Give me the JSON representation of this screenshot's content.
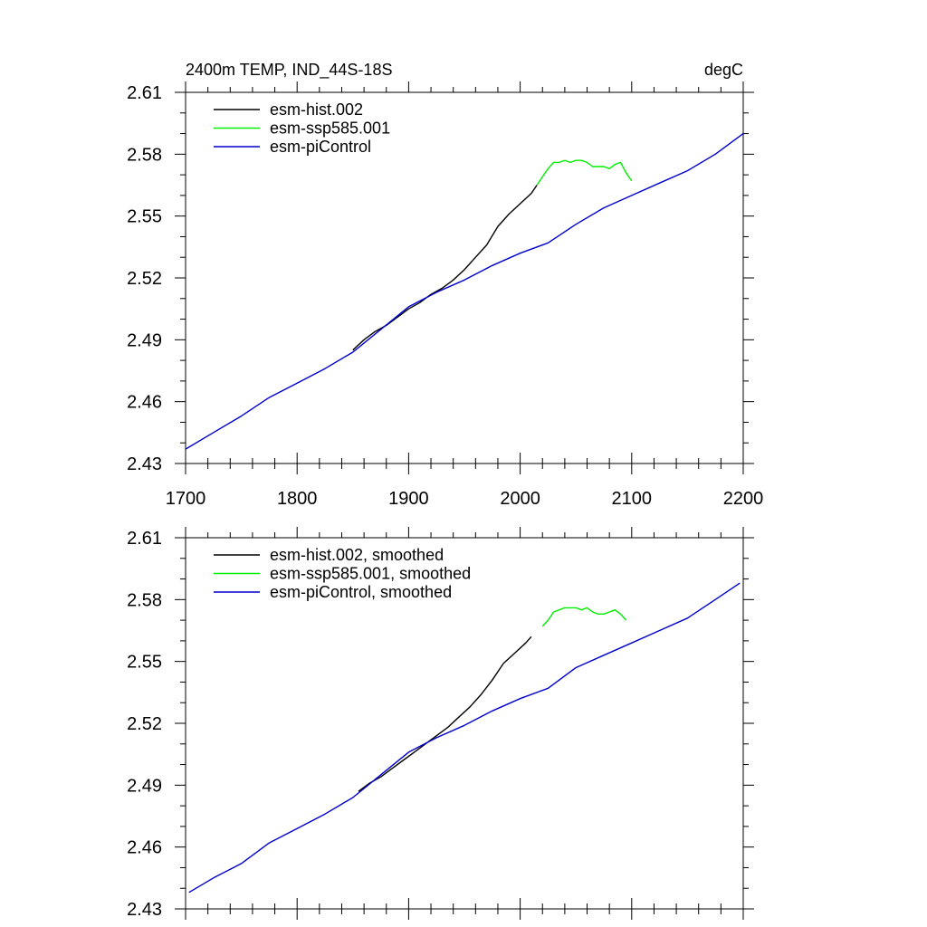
{
  "chart_data": [
    {
      "type": "line",
      "title_left": "2400m TEMP, IND_44S-18S",
      "title_right": "degC",
      "xlabel": "",
      "ylabel": "",
      "xlim": [
        1700,
        2200
      ],
      "ylim": [
        2.43,
        2.61
      ],
      "xticks": [
        "1700",
        "1800",
        "1900",
        "2000",
        "2100",
        "2200"
      ],
      "yticks": [
        "2.43",
        "2.46",
        "2.49",
        "2.52",
        "2.55",
        "2.58",
        "2.61"
      ],
      "legend_position": "top-left",
      "series": [
        {
          "name": "esm-hist.002",
          "color": "#000000",
          "x": [
            1850,
            1860,
            1870,
            1880,
            1890,
            1900,
            1910,
            1920,
            1930,
            1940,
            1950,
            1960,
            1970,
            1980,
            1990,
            2000,
            2010,
            2015
          ],
          "y": [
            2.485,
            2.49,
            2.494,
            2.497,
            2.501,
            2.505,
            2.508,
            2.512,
            2.515,
            2.519,
            2.524,
            2.53,
            2.536,
            2.545,
            2.551,
            2.556,
            2.561,
            2.565
          ]
        },
        {
          "name": "esm-ssp585.001",
          "color": "#00ee00",
          "x": [
            2015,
            2020,
            2025,
            2030,
            2035,
            2040,
            2045,
            2050,
            2055,
            2060,
            2065,
            2070,
            2075,
            2080,
            2085,
            2090,
            2095,
            2100
          ],
          "y": [
            2.565,
            2.569,
            2.573,
            2.576,
            2.576,
            2.577,
            2.576,
            2.577,
            2.577,
            2.576,
            2.574,
            2.574,
            2.574,
            2.573,
            2.575,
            2.576,
            2.571,
            2.567
          ]
        },
        {
          "name": "esm-piControl",
          "color": "#0000cc",
          "x": [
            1700,
            1725,
            1750,
            1775,
            1800,
            1825,
            1850,
            1875,
            1900,
            1925,
            1950,
            1975,
            2000,
            2025,
            2050,
            2075,
            2100,
            2125,
            2150,
            2175,
            2200
          ],
          "y": [
            2.437,
            2.445,
            2.453,
            2.462,
            2.469,
            2.476,
            2.484,
            2.495,
            2.506,
            2.513,
            2.519,
            2.526,
            2.532,
            2.537,
            2.546,
            2.554,
            2.56,
            2.566,
            2.572,
            2.58,
            2.59
          ]
        }
      ]
    },
    {
      "type": "line",
      "title_left": "",
      "title_right": "",
      "xlabel": "",
      "ylabel": "",
      "xlim": [
        1700,
        2200
      ],
      "ylim": [
        2.43,
        2.61
      ],
      "xticks": [],
      "yticks": [
        "2.43",
        "2.46",
        "2.49",
        "2.52",
        "2.55",
        "2.58",
        "2.61"
      ],
      "legend_position": "top-left",
      "series": [
        {
          "name": "esm-hist.002, smoothed",
          "color": "#000000",
          "x": [
            1855,
            1865,
            1875,
            1885,
            1895,
            1905,
            1915,
            1925,
            1935,
            1945,
            1955,
            1965,
            1975,
            1985,
            1995,
            2005,
            2010
          ],
          "y": [
            2.487,
            2.491,
            2.494,
            2.498,
            2.502,
            2.506,
            2.51,
            2.514,
            2.518,
            2.523,
            2.528,
            2.534,
            2.541,
            2.549,
            2.554,
            2.559,
            2.562
          ]
        },
        {
          "name": "esm-ssp585.001, smoothed",
          "color": "#00ee00",
          "x": [
            2020,
            2025,
            2030,
            2035,
            2040,
            2045,
            2050,
            2055,
            2060,
            2065,
            2070,
            2075,
            2080,
            2085,
            2090,
            2095
          ],
          "y": [
            2.567,
            2.57,
            2.574,
            2.575,
            2.576,
            2.576,
            2.576,
            2.575,
            2.576,
            2.574,
            2.573,
            2.573,
            2.574,
            2.575,
            2.573,
            2.57
          ]
        },
        {
          "name": "esm-piControl, smoothed",
          "color": "#0000cc",
          "x": [
            1703,
            1725,
            1750,
            1775,
            1800,
            1825,
            1850,
            1875,
            1900,
            1925,
            1950,
            1975,
            2000,
            2025,
            2050,
            2075,
            2100,
            2125,
            2150,
            2175,
            2197
          ],
          "y": [
            2.438,
            2.445,
            2.452,
            2.462,
            2.469,
            2.476,
            2.484,
            2.495,
            2.506,
            2.513,
            2.519,
            2.526,
            2.532,
            2.537,
            2.547,
            2.553,
            2.559,
            2.565,
            2.571,
            2.58,
            2.588
          ]
        }
      ]
    }
  ]
}
